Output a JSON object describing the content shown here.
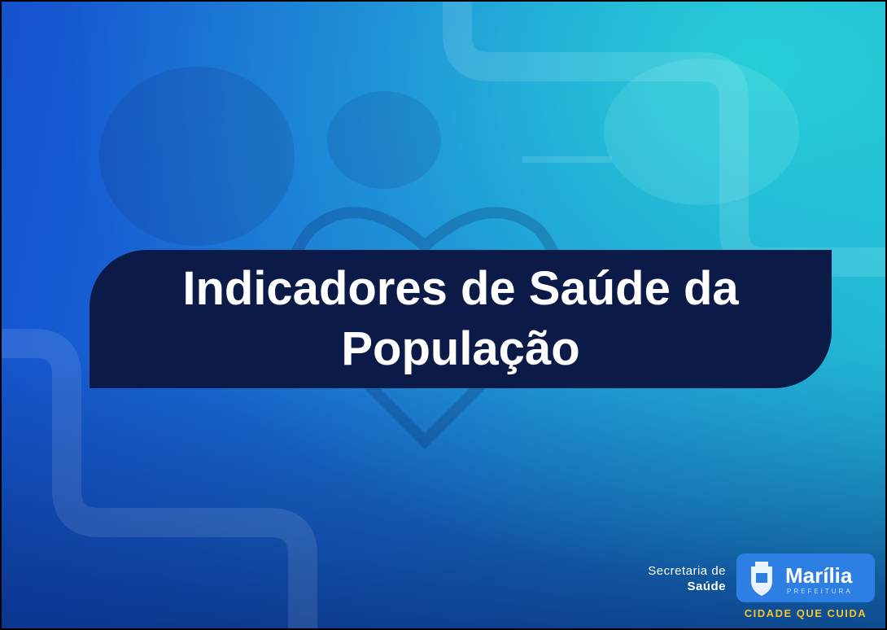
{
  "slide": {
    "title": "Indicadores de Saúde da População",
    "footer": {
      "department_line1": "Secretaria de",
      "department_line2": "Saúde",
      "city": "Marília",
      "city_subtitle": "PREFEITURA",
      "slogan": "CIDADE QUE CUIDA"
    }
  }
}
